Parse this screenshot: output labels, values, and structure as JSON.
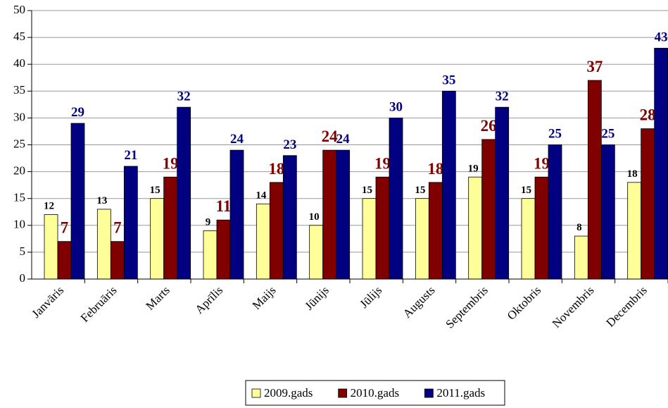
{
  "chart_data": {
    "type": "bar",
    "categories": [
      "Janvāris",
      "Februāris",
      "Marts",
      "Aprīlis",
      "Maijs",
      "Jūnijs",
      "Jūlijs",
      "Augusts",
      "Septembris",
      "Oktobris",
      "Novembris",
      "Decembris"
    ],
    "series": [
      {
        "name": "2009.gads",
        "color": "#FFFF99",
        "values": [
          12,
          13,
          15,
          9,
          14,
          10,
          15,
          15,
          19,
          15,
          8,
          18
        ]
      },
      {
        "name": "2010.gads",
        "color": "#800000",
        "values": [
          7,
          7,
          19,
          11,
          18,
          24,
          19,
          18,
          26,
          19,
          37,
          28
        ]
      },
      {
        "name": "2011.gads",
        "color": "#000080",
        "values": [
          29,
          21,
          32,
          24,
          23,
          24,
          30,
          35,
          32,
          25,
          25,
          43
        ]
      }
    ],
    "ylim": [
      0,
      50
    ],
    "yticks": [
      0,
      5,
      10,
      15,
      20,
      25,
      30,
      35,
      40,
      45,
      50
    ],
    "grid": true,
    "legend": "bottom"
  }
}
